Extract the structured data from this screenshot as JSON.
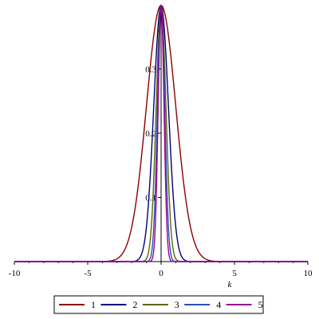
{
  "chart_data": {
    "type": "line",
    "xlabel": "k",
    "ylabel": "",
    "xlim": [
      -10,
      10
    ],
    "ylim": [
      0,
      0.4
    ],
    "x_ticks": [
      -10,
      -5,
      0,
      5,
      10
    ],
    "x_tick_labels": [
      "-10",
      "-5",
      "0",
      "5",
      "10"
    ],
    "y_ticks": [
      0.1,
      0.2,
      0.3
    ],
    "y_tick_labels": [
      "0.1",
      "0.2",
      "0.3"
    ],
    "grid": false,
    "legend_position": "bottom",
    "legend_names": [
      "1",
      "2",
      "3",
      "4",
      "5"
    ],
    "series_curve_sigma": [
      1.0,
      0.5,
      0.333,
      0.25,
      0.2
    ],
    "series_peak": [
      0.399,
      0.399,
      0.399,
      0.399,
      0.399
    ],
    "series_colors": [
      "#8b0000",
      "#000080",
      "#556b00",
      "#2d4fb0",
      "#990099"
    ]
  }
}
